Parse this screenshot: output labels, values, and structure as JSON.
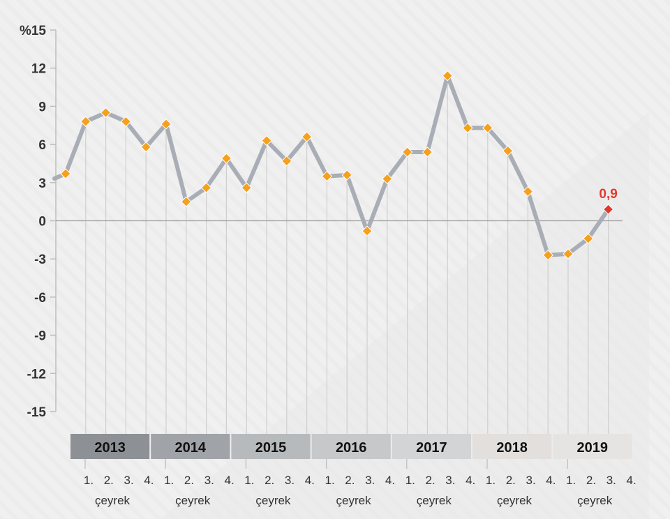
{
  "chart_data": {
    "type": "line",
    "y_unit_label": "%15",
    "ylim": [
      -15,
      15
    ],
    "yticks": [
      "%15",
      "12",
      "9",
      "6",
      "3",
      "0",
      "-3",
      "-6",
      "-9",
      "-12",
      "-15"
    ],
    "years": [
      "2013",
      "2014",
      "2015",
      "2016",
      "2017",
      "2018",
      "2019"
    ],
    "quarter_labels": [
      "1.",
      "2.",
      "3.",
      "4."
    ],
    "quarter_word": "çeyrek",
    "values": [
      3.7,
      7.8,
      8.5,
      7.8,
      5.8,
      7.6,
      1.5,
      2.6,
      4.9,
      2.6,
      6.3,
      4.7,
      6.6,
      3.5,
      3.6,
      -0.8,
      3.3,
      5.4,
      5.4,
      11.4,
      7.3,
      7.3,
      5.5,
      2.3,
      -2.7,
      -2.6,
      -1.4,
      0.9
    ],
    "annotation": "0,9",
    "grid": false,
    "colors": {
      "line": "#a9aeb6",
      "marker": "#f5a01e",
      "last_marker": "#e03a2f",
      "year_bands": [
        "#8d9195",
        "#a0a3a7",
        "#b7babd",
        "#c6c8ca",
        "#d3d4d5",
        "#e2dfdd",
        "#e6e4e2"
      ]
    }
  }
}
